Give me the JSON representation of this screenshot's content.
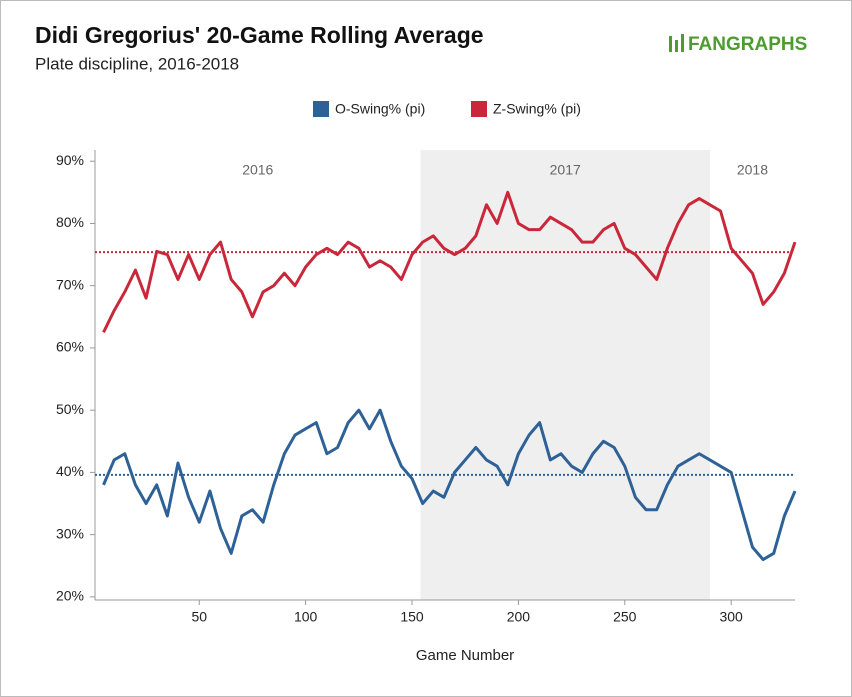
{
  "chart_data": {
    "type": "line",
    "title": "Didi Gregorius' 20-Game Rolling Average",
    "subtitle": "Plate discipline, 2016-2018",
    "brand": "FANGRAPHS",
    "x_label": "Game Number",
    "xlim": [
      1,
      330
    ],
    "xticks": [
      50,
      100,
      150,
      200,
      250,
      300
    ],
    "ylim": [
      19.5,
      91.8
    ],
    "yticks": [
      {
        "value": 20,
        "label": "20%"
      },
      {
        "value": 30,
        "label": "30%"
      },
      {
        "value": 40,
        "label": "40%"
      },
      {
        "value": 50,
        "label": "50%"
      },
      {
        "value": 60,
        "label": "60%"
      },
      {
        "value": 70,
        "label": "70%"
      },
      {
        "value": 80,
        "label": "80%"
      },
      {
        "value": 90,
        "label": "90%"
      }
    ],
    "seasons": [
      {
        "label": "2016",
        "start": 1,
        "end": 154,
        "shaded": false
      },
      {
        "label": "2017",
        "start": 154,
        "end": 290,
        "shaded": true
      },
      {
        "label": "2018",
        "start": 290,
        "end": 330,
        "shaded": false
      }
    ],
    "x": [
      5,
      10,
      15,
      20,
      25,
      30,
      35,
      40,
      45,
      50,
      55,
      60,
      65,
      70,
      75,
      80,
      85,
      90,
      95,
      100,
      105,
      110,
      115,
      120,
      125,
      130,
      135,
      140,
      145,
      150,
      155,
      160,
      165,
      170,
      175,
      180,
      185,
      190,
      195,
      200,
      205,
      210,
      215,
      220,
      225,
      230,
      235,
      240,
      245,
      250,
      255,
      260,
      265,
      270,
      275,
      280,
      285,
      290,
      295,
      300,
      305,
      310,
      315,
      320,
      325,
      330
    ],
    "series": [
      {
        "name": "O-Swing% (pi)",
        "color": "#2e6196",
        "average": 39.6,
        "values": [
          38,
          42,
          43,
          38,
          35,
          38,
          33,
          41.5,
          36,
          32,
          37,
          31,
          27,
          33,
          34,
          32,
          38,
          43,
          46,
          47,
          48,
          43,
          44,
          48,
          50,
          47,
          50,
          45,
          41,
          39,
          35,
          37,
          36,
          40,
          42,
          44,
          42,
          41,
          38,
          43,
          46,
          48,
          42,
          43,
          41,
          40,
          43,
          45,
          44,
          41,
          36,
          34,
          34,
          38,
          41,
          42,
          43,
          42,
          41,
          40,
          34,
          28,
          26,
          27,
          33,
          37
        ]
      },
      {
        "name": "Z-Swing% (pi)",
        "color": "#c8283a",
        "average": 75.4,
        "values": [
          62.5,
          66,
          69,
          72.5,
          68,
          75.5,
          75,
          71,
          75,
          71,
          75,
          77,
          71,
          69,
          65,
          69,
          70,
          72,
          70,
          73,
          75,
          76,
          75,
          77,
          76,
          73,
          74,
          73,
          71,
          75,
          77,
          78,
          76,
          75,
          76,
          78,
          83,
          80,
          85,
          80,
          79,
          79,
          81,
          80,
          79,
          77,
          77,
          79,
          80,
          76,
          75,
          73,
          71,
          76,
          80,
          83,
          84,
          83,
          82,
          76,
          74,
          72,
          67,
          69,
          72,
          77
        ]
      }
    ]
  }
}
